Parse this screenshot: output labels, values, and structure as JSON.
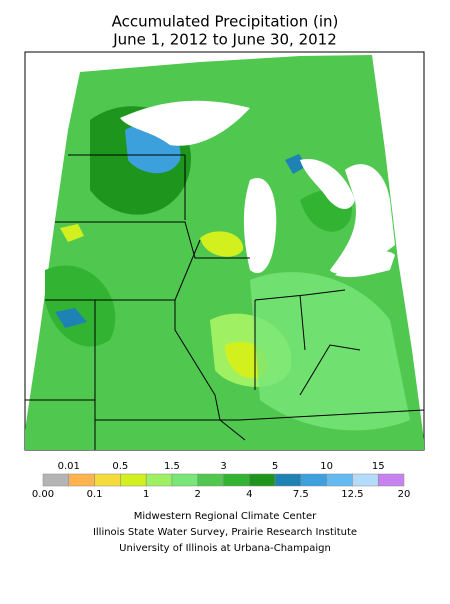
{
  "header": {
    "title": [
      "Accumulated Precipitation (in)",
      "June 1, 2012 to June 30, 2012"
    ]
  },
  "legend": {
    "labels": [
      "0.00",
      "0.01",
      "0.1",
      "0.5",
      "1",
      "1.5",
      "2",
      "3",
      "4",
      "5",
      "7.5",
      "10",
      "12.5",
      "15",
      "20"
    ],
    "colors": [
      "#b4b4b4",
      "#ffb450",
      "#f5dc3c",
      "#d2f01e",
      "#a0f064",
      "#78e678",
      "#50c850",
      "#32b432",
      "#1e961e",
      "#1e82b4",
      "#3ca0dc",
      "#64b9f0",
      "#b4dcfa",
      "#c882f0"
    ]
  },
  "footer": [
    "Midwestern Regional Climate Center",
    "Illinois State Water Survey, Prairie Research Institute",
    "University of Illinois at Urbana-Champaign"
  ]
}
